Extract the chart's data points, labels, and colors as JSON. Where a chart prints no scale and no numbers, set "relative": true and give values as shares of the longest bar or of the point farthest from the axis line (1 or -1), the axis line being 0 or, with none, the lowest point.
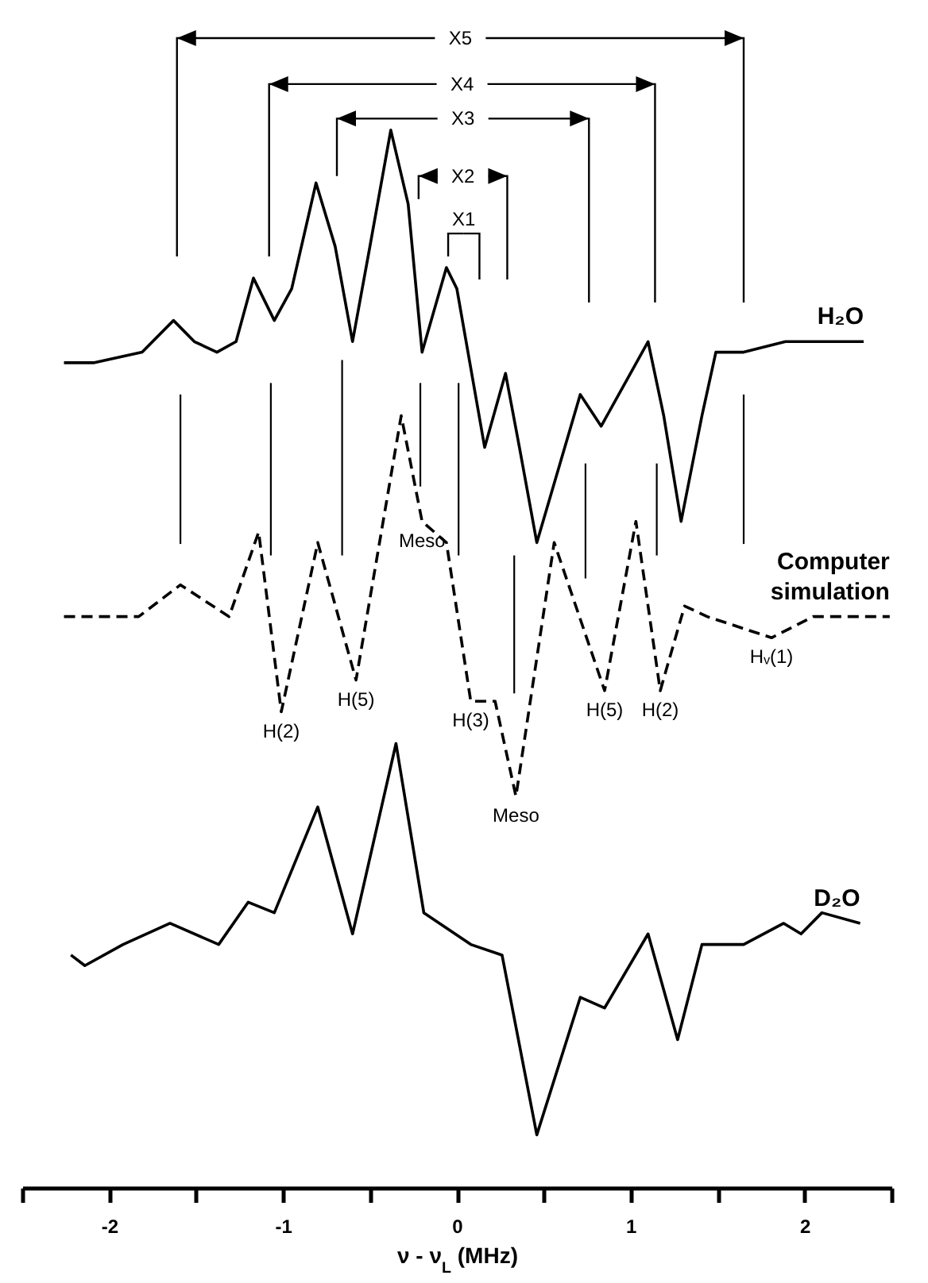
{
  "chart_data": {
    "type": "line",
    "relative": true,
    "xlabel": "ν - ν$_{L}$  (MHz)",
    "xlim": [
      -2.5,
      2.5
    ],
    "xticks": [
      {
        "value": -2.5,
        "label": null
      },
      -2,
      {
        "value": -1.5,
        "label": null
      },
      -1,
      {
        "value": -0.5,
        "label": null
      },
      0,
      {
        "value": 0.5,
        "label": null
      },
      1,
      {
        "value": 1.5,
        "label": null
      },
      2,
      {
        "value": 2.5,
        "label": null
      }
    ],
    "grid": false,
    "series": [
      {
        "name": "H₂O",
        "color": "#000000",
        "line_style": "solid",
        "x": [
          -2.26,
          -2.09,
          -1.81,
          -1.63,
          -1.51,
          -1.38,
          -1.27,
          -1.17,
          -1.05,
          -0.95,
          -0.81,
          -0.7,
          -0.6,
          -0.5,
          -0.38,
          -0.28,
          -0.2,
          -0.06,
          0,
          0.16,
          0.28,
          0.36,
          0.46,
          0.71,
          0.83,
          1.1,
          1.19,
          1.29,
          1.41,
          1.49,
          1.65,
          1.89,
          2.19,
          2.34
        ],
        "values": [
          0.78,
          0.78,
          0.79,
          0.82,
          0.8,
          0.79,
          0.8,
          0.86,
          0.82,
          0.85,
          0.95,
          0.89,
          0.8,
          0.89,
          1,
          0.93,
          0.79,
          0.87,
          0.85,
          0.7,
          0.77,
          0.7,
          0.61,
          0.75,
          0.72,
          0.8,
          0.73,
          0.63,
          0.73,
          0.79,
          0.79,
          0.8,
          0.8,
          0.8
        ]
      },
      {
        "name": "Computer simulation",
        "color": "#000000",
        "line_style": "dashed",
        "x": [
          -2.26,
          -1.83,
          -1.59,
          -1.31,
          -1.14,
          -1.01,
          -0.8,
          -0.58,
          -0.32,
          -0.2,
          -0.06,
          0.08,
          0.22,
          0.34,
          0.56,
          0.85,
          1.03,
          1.17,
          1.31,
          1.44,
          1.81,
          2.05,
          2.49
        ],
        "values": [
          0.54,
          0.54,
          0.57,
          0.54,
          0.62,
          0.45,
          0.61,
          0.48,
          0.73,
          0.63,
          0.61,
          0.46,
          0.46,
          0.37,
          0.61,
          0.47,
          0.63,
          0.47,
          0.55,
          0.54,
          0.52,
          0.54,
          0.54
        ]
      },
      {
        "name": "D₂O",
        "color": "#000000",
        "line_style": "solid",
        "x": [
          -2.22,
          -2.14,
          -1.92,
          -1.65,
          -1.37,
          -1.2,
          -1.05,
          -0.8,
          -0.6,
          -0.35,
          -0.19,
          0.08,
          0.26,
          0.46,
          0.71,
          0.85,
          1.1,
          1.27,
          1.41,
          1.65,
          1.88,
          1.98,
          2.1,
          2.32
        ],
        "values": [
          0.22,
          0.21,
          0.23,
          0.25,
          0.23,
          0.27,
          0.26,
          0.36,
          0.24,
          0.42,
          0.26,
          0.23,
          0.22,
          0.05,
          0.18,
          0.17,
          0.24,
          0.14,
          0.23,
          0.23,
          0.25,
          0.24,
          0.26,
          0.25
        ]
      }
    ],
    "annotations": [
      "X5",
      "X4",
      "X3",
      "X2",
      "X1",
      {
        "text": "H(2)",
        "x": -1.01,
        "y": 0.45
      },
      {
        "text": "H(5)",
        "x": -0.58,
        "y": 0.48
      },
      {
        "text": "Meso",
        "x": -0.2,
        "y": 0.63
      },
      {
        "text": "H(3)",
        "x": 0.08,
        "y": 0.46
      },
      {
        "text": "Meso",
        "x": 0.34,
        "y": 0.37
      },
      {
        "text": "H(5)",
        "x": 0.85,
        "y": 0.47
      },
      {
        "text": "H(2)",
        "x": 1.17,
        "y": 0.47
      },
      {
        "text": "Hᵥ(1)",
        "x": 1.81,
        "y": 0.52
      }
    ]
  }
}
